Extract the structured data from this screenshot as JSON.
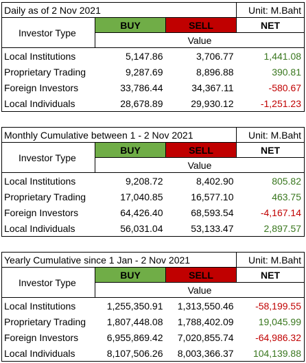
{
  "daily": {
    "title": "Daily as of 2 Nov 2021",
    "unit": "Unit: M.Baht",
    "investor_type_label": "Investor Type",
    "buy_label": "BUY",
    "sell_label": "SELL",
    "net_label": "NET",
    "value_label": "Value",
    "rows": [
      {
        "name": "Local Institutions",
        "buy": "5,147.86",
        "sell": "3,706.77",
        "net": "1,441.08",
        "sign": "pos"
      },
      {
        "name": "Proprietary Trading",
        "buy": "9,287.69",
        "sell": "8,896.88",
        "net": "390.81",
        "sign": "pos"
      },
      {
        "name": "Foreign Investors",
        "buy": "33,786.44",
        "sell": "34,367.11",
        "net": "-580.67",
        "sign": "neg"
      },
      {
        "name": "Local Individuals",
        "buy": "28,678.89",
        "sell": "29,930.12",
        "net": "-1,251.23",
        "sign": "neg"
      }
    ]
  },
  "monthly": {
    "title": "Monthly Cumulative between 1 - 2 Nov 2021",
    "unit": "Unit: M.Baht",
    "investor_type_label": "Investor Type",
    "buy_label": "BUY",
    "sell_label": "SELL",
    "net_label": "NET",
    "value_label": "Value",
    "rows": [
      {
        "name": "Local Institutions",
        "buy": "9,208.72",
        "sell": "8,402.90",
        "net": "805.82",
        "sign": "pos"
      },
      {
        "name": "Proprietary Trading",
        "buy": "17,040.85",
        "sell": "16,577.10",
        "net": "463.75",
        "sign": "pos"
      },
      {
        "name": "Foreign Investors",
        "buy": "64,426.40",
        "sell": "68,593.54",
        "net": "-4,167.14",
        "sign": "neg"
      },
      {
        "name": "Local Individuals",
        "buy": "56,031.04",
        "sell": "53,133.47",
        "net": "2,897.57",
        "sign": "pos"
      }
    ]
  },
  "yearly": {
    "title": "Yearly Cumulative since 1 Jan - 2 Nov 2021",
    "unit": "Unit: M.Baht",
    "investor_type_label": "Investor Type",
    "buy_label": "BUY",
    "sell_label": "SELL",
    "net_label": "NET",
    "value_label": "Value",
    "rows": [
      {
        "name": "Local Institutions",
        "buy": "1,255,350.91",
        "sell": "1,313,550.46",
        "net": "-58,199.55",
        "sign": "neg"
      },
      {
        "name": "Proprietary Trading",
        "buy": "1,807,448.08",
        "sell": "1,788,402.09",
        "net": "19,045.99",
        "sign": "pos"
      },
      {
        "name": "Foreign Investors",
        "buy": "6,955,869.42",
        "sell": "7,020,855.74",
        "net": "-64,986.32",
        "sign": "neg"
      },
      {
        "name": "Local Individuals",
        "buy": "8,107,506.26",
        "sell": "8,003,366.37",
        "net": "104,139.88",
        "sign": "pos"
      }
    ]
  },
  "colors": {
    "buy_bg": "#70ad47",
    "sell_bg": "#c00000",
    "positive_text": "#38761d",
    "negative_text": "#c00000"
  }
}
